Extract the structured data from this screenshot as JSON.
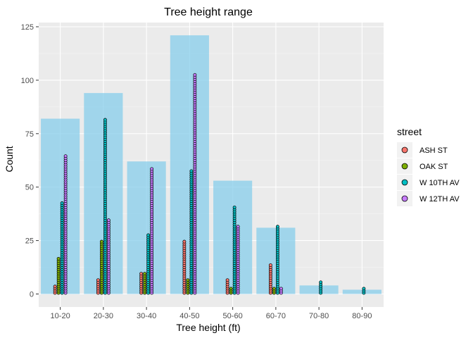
{
  "chart_data": {
    "type": "bar",
    "title": "Tree height range",
    "xlabel": "Tree height (ft)",
    "ylabel": "Count",
    "ylim": [
      0,
      125
    ],
    "yticks": [
      0,
      25,
      50,
      75,
      100,
      125
    ],
    "grid": true,
    "legend": {
      "title": "street",
      "placement": "right",
      "entries": [
        "ASH ST",
        "OAK ST",
        "W 10TH AV",
        "W 12TH AV"
      ]
    },
    "categories": [
      "10-20",
      "20-30",
      "30-40",
      "40-50",
      "50-60",
      "60-70",
      "70-80",
      "80-90"
    ],
    "totals": {
      "name": "",
      "color": "#87ceeb",
      "values": [
        82,
        94,
        62,
        121,
        53,
        31,
        4,
        2
      ]
    },
    "series": [
      {
        "name": "ASH ST",
        "color": "#f8766d",
        "values": [
          4,
          7,
          10,
          25,
          7,
          14,
          0,
          0
        ]
      },
      {
        "name": "OAK ST",
        "color": "#7cae00",
        "values": [
          17,
          25,
          10,
          7,
          3,
          3,
          0,
          0
        ]
      },
      {
        "name": "W 10TH AV",
        "color": "#00bfc4",
        "values": [
          43,
          82,
          28,
          58,
          41,
          32,
          6,
          3
        ]
      },
      {
        "name": "W 12TH AV",
        "color": "#c77cff",
        "values": [
          65,
          35,
          59,
          103,
          32,
          3,
          0,
          0
        ]
      }
    ]
  }
}
